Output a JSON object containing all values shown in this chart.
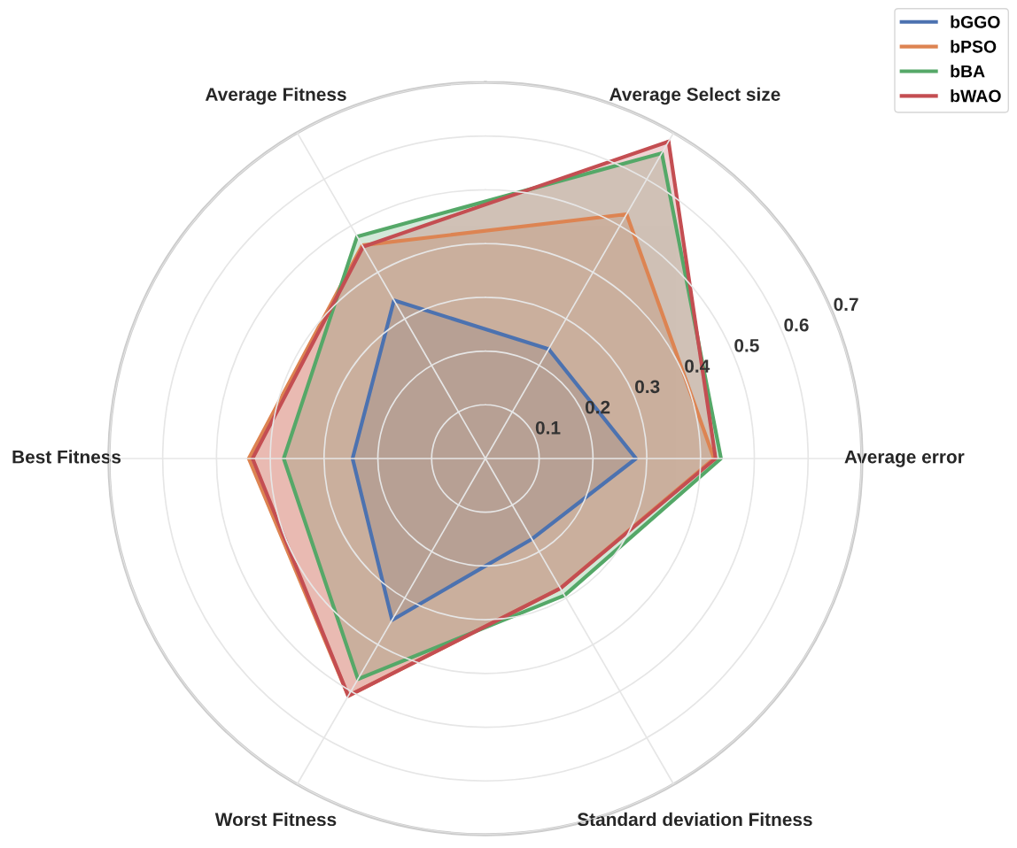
{
  "chart_data": {
    "type": "radar",
    "categories": [
      "Average Select size",
      "Average error",
      "Standard deviation Fitness",
      "Worst Fitness",
      "Best Fitness",
      "Average Fitness"
    ],
    "series": [
      {
        "name": "bGGO",
        "color": "#4c72b0",
        "values": [
          0.235,
          0.28,
          0.173,
          0.347,
          0.247,
          0.34
        ]
      },
      {
        "name": "bPSO",
        "color": "#dd8452",
        "values": [
          0.525,
          0.425,
          0.279,
          0.51,
          0.44,
          0.458
        ]
      },
      {
        "name": "bBA",
        "color": "#55a868",
        "values": [
          0.656,
          0.438,
          0.294,
          0.474,
          0.375,
          0.477
        ]
      },
      {
        "name": "bWAO",
        "color": "#c44e52",
        "values": [
          0.681,
          0.428,
          0.279,
          0.51,
          0.433,
          0.455
        ]
      }
    ],
    "ylim": [
      0,
      0.7
    ],
    "yticks": [
      0.1,
      0.2,
      0.3,
      0.4,
      0.5,
      0.6,
      0.7
    ],
    "grid": true,
    "legend": "top right"
  }
}
